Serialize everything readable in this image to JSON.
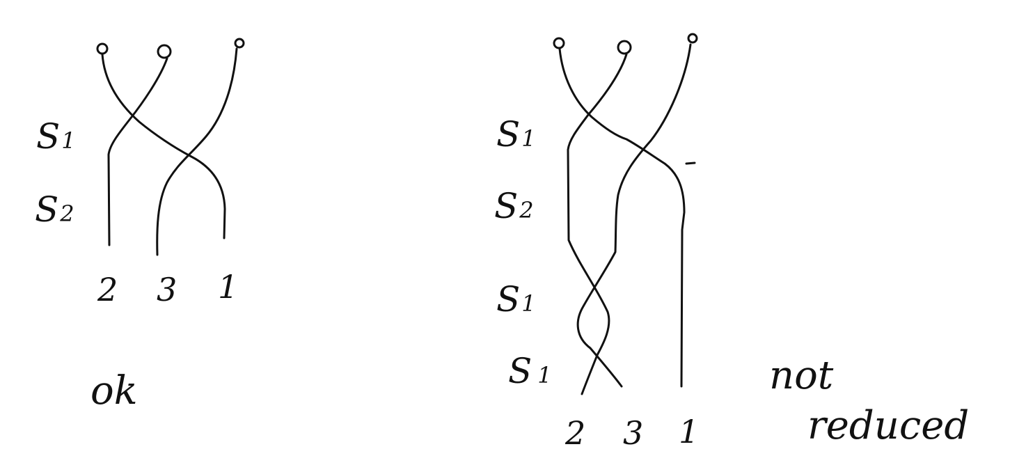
{
  "left": {
    "generators": [
      {
        "letter": "S",
        "index": "1"
      },
      {
        "letter": "S",
        "index": "2"
      }
    ],
    "bottom_labels": [
      "2",
      "3",
      "1"
    ],
    "verdict": "ok"
  },
  "right": {
    "generators": [
      {
        "letter": "S",
        "index": "1"
      },
      {
        "letter": "S",
        "index": "2"
      },
      {
        "letter": "S",
        "index": "1"
      },
      {
        "letter": "S",
        "index": "1"
      }
    ],
    "bottom_labels": [
      "2",
      "3",
      "1"
    ],
    "verdict": [
      "not",
      "reduced"
    ]
  }
}
